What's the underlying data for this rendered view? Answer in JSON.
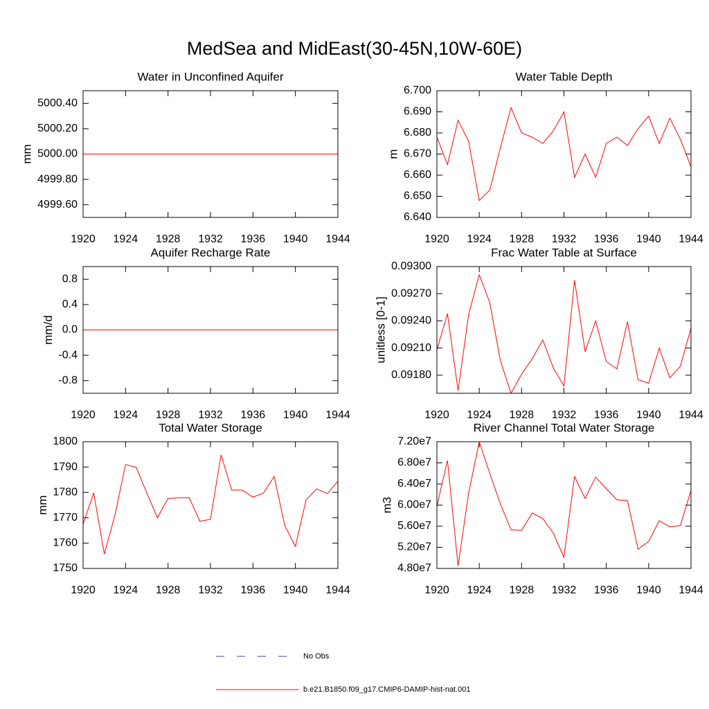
{
  "title": "MedSea and MidEast(30-45N,10W-60E)",
  "legend": [
    {
      "label": "No Obs",
      "color": "#4040a0",
      "dash": "12 18"
    },
    {
      "label": "b.e21.B1850.f09_g17.CMIP6-DAMIP-hist-nat.001",
      "color": "#ff0000"
    }
  ],
  "chart_data": [
    {
      "type": "line",
      "title": "Water in Unconfined Aquifer",
      "y_label": "mm",
      "color": "#ff0000",
      "x": [
        1920,
        1921,
        1922,
        1923,
        1924,
        1925,
        1926,
        1927,
        1928,
        1929,
        1930,
        1931,
        1932,
        1933,
        1934,
        1935,
        1936,
        1937,
        1938,
        1939,
        1940,
        1941,
        1942,
        1943,
        1944
      ],
      "values": [
        5000,
        5000,
        5000,
        5000,
        5000,
        5000,
        5000,
        5000,
        5000,
        5000,
        5000,
        5000,
        5000,
        5000,
        5000,
        5000,
        5000,
        5000,
        5000,
        5000,
        5000,
        5000,
        5000,
        5000,
        5000
      ],
      "xlim": [
        1920,
        1944
      ],
      "xticks": [
        1920,
        1924,
        1928,
        1932,
        1936,
        1940,
        1944
      ],
      "ylim": [
        4999.5,
        5000.5
      ],
      "yticks": [
        {
          "value": 4999.6,
          "label": "4999.60"
        },
        {
          "value": 4999.8,
          "label": "4999.80"
        },
        {
          "value": 5000,
          "label": "5000.00"
        },
        {
          "value": 5000.2,
          "label": "5000.20"
        },
        {
          "value": 5000.4,
          "label": "5000.40"
        }
      ]
    },
    {
      "type": "line",
      "title": "Water Table Depth",
      "y_label": "m",
      "color": "#ff0000",
      "x": [
        1920,
        1921,
        1922,
        1923,
        1924,
        1925,
        1926,
        1927,
        1928,
        1929,
        1930,
        1931,
        1932,
        1933,
        1934,
        1935,
        1936,
        1937,
        1938,
        1939,
        1940,
        1941,
        1942,
        1943,
        1944
      ],
      "values": [
        6.678,
        6.665,
        6.686,
        6.676,
        6.648,
        6.653,
        6.673,
        6.692,
        6.68,
        6.678,
        6.675,
        6.681,
        6.69,
        6.659,
        6.67,
        6.659,
        6.675,
        6.678,
        6.674,
        6.682,
        6.688,
        6.675,
        6.687,
        6.677,
        6.664
      ],
      "xlim": [
        1920,
        1944
      ],
      "xticks": [
        1920,
        1924,
        1928,
        1932,
        1936,
        1940,
        1944
      ],
      "ylim": [
        6.64,
        6.7
      ],
      "yticks": [
        {
          "value": 6.64,
          "label": "6.640"
        },
        {
          "value": 6.65,
          "label": "6.650"
        },
        {
          "value": 6.66,
          "label": "6.660"
        },
        {
          "value": 6.67,
          "label": "6.670"
        },
        {
          "value": 6.68,
          "label": "6.680"
        },
        {
          "value": 6.69,
          "label": "6.690"
        },
        {
          "value": 6.7,
          "label": "6.700"
        }
      ]
    },
    {
      "type": "line",
      "title": "Aquifer Recharge Rate",
      "y_label": "mm/d",
      "color": "#ff0000",
      "x": [
        1920,
        1921,
        1922,
        1923,
        1924,
        1925,
        1926,
        1927,
        1928,
        1929,
        1930,
        1931,
        1932,
        1933,
        1934,
        1935,
        1936,
        1937,
        1938,
        1939,
        1940,
        1941,
        1942,
        1943,
        1944
      ],
      "values": [
        0,
        0,
        0,
        0,
        0,
        0,
        0,
        0,
        0,
        0,
        0,
        0,
        0,
        0,
        0,
        0,
        0,
        0,
        0,
        0,
        0,
        0,
        0,
        0,
        0
      ],
      "xlim": [
        1920,
        1944
      ],
      "xticks": [
        1920,
        1924,
        1928,
        1932,
        1936,
        1940,
        1944
      ],
      "ylim": [
        -1,
        1
      ],
      "yticks": [
        -0.8,
        -0.4,
        {
          "value": 0,
          "label": "0.0"
        },
        0.4,
        0.8
      ]
    },
    {
      "type": "line",
      "title": "Frac Water Table at Surface",
      "y_label": "unitless [0-1]",
      "color": "#ff0000",
      "x": [
        1920,
        1921,
        1922,
        1923,
        1924,
        1925,
        1926,
        1927,
        1928,
        1929,
        1930,
        1931,
        1932,
        1933,
        1934,
        1935,
        1936,
        1937,
        1938,
        1939,
        1940,
        1941,
        1942,
        1943,
        1944
      ],
      "values": [
        0.09208,
        0.09248,
        0.09163,
        0.09247,
        0.09291,
        0.0926,
        0.09196,
        0.0916,
        0.09181,
        0.09198,
        0.09219,
        0.09188,
        0.09168,
        0.09285,
        0.09206,
        0.0924,
        0.09195,
        0.09187,
        0.09239,
        0.09175,
        0.09171,
        0.0921,
        0.09177,
        0.0919,
        0.09232
      ],
      "xlim": [
        1920,
        1944
      ],
      "xticks": [
        1920,
        1924,
        1928,
        1932,
        1936,
        1940,
        1944
      ],
      "ylim": [
        0.0916,
        0.093
      ],
      "yticks": [
        {
          "value": 0.0918,
          "label": "0.09180"
        },
        {
          "value": 0.0921,
          "label": "0.09210"
        },
        {
          "value": 0.0924,
          "label": "0.09240"
        },
        {
          "value": 0.0927,
          "label": "0.09270"
        },
        {
          "value": 0.093,
          "label": "0.09300"
        }
      ]
    },
    {
      "type": "line",
      "title": "Total Water Storage",
      "y_label": "mm",
      "color": "#ff0000",
      "x": [
        1920,
        1921,
        1922,
        1923,
        1924,
        1925,
        1926,
        1927,
        1928,
        1929,
        1930,
        1931,
        1932,
        1933,
        1934,
        1935,
        1936,
        1937,
        1938,
        1939,
        1940,
        1941,
        1942,
        1943,
        1944
      ],
      "values": [
        1767.5,
        1779.8,
        1755.7,
        1771,
        1791,
        1789.9,
        1779.8,
        1770,
        1777.6,
        1777.9,
        1777.9,
        1768.6,
        1769.4,
        1794.8,
        1780.9,
        1780.9,
        1778.1,
        1779.8,
        1786.3,
        1766.9,
        1758.7,
        1777,
        1781.4,
        1779.5,
        1784.4
      ],
      "xlim": [
        1920,
        1944
      ],
      "xticks": [
        1920,
        1924,
        1928,
        1932,
        1936,
        1940,
        1944
      ],
      "ylim": [
        1750,
        1800
      ],
      "yticks": [
        1750,
        1760,
        1770,
        1780,
        1790,
        1800
      ]
    },
    {
      "type": "line",
      "title": "River Channel Total Water Storage",
      "y_label": "m3",
      "color": "#ff0000",
      "x": [
        1920,
        1921,
        1922,
        1923,
        1924,
        1925,
        1926,
        1927,
        1928,
        1929,
        1930,
        1931,
        1932,
        1933,
        1934,
        1935,
        1936,
        1937,
        1938,
        1939,
        1940,
        1941,
        1942,
        1943,
        1944
      ],
      "values": [
        59800000,
        68460000,
        48500000,
        62300000,
        72000000,
        65970000,
        60200000,
        55340000,
        55200000,
        58500000,
        57450000,
        54690000,
        50100000,
        65440000,
        61250000,
        65300000,
        63100000,
        61000000,
        60850000,
        51670000,
        53100000,
        57050000,
        55870000,
        56130000,
        62820000
      ],
      "xlim": [
        1920,
        1944
      ],
      "xticks": [
        1920,
        1924,
        1928,
        1932,
        1936,
        1940,
        1944
      ],
      "ylim": [
        48000000,
        72000000
      ],
      "yticks": [
        {
          "value": 48000000,
          "label": "4.80e7"
        },
        {
          "value": 52000000,
          "label": "5.20e7"
        },
        {
          "value": 56000000,
          "label": "5.60e7"
        },
        {
          "value": 60000000,
          "label": "6.00e7"
        },
        {
          "value": 64000000,
          "label": "6.40e7"
        },
        {
          "value": 68000000,
          "label": "6.80e7"
        },
        {
          "value": 72000000,
          "label": "7.20e7"
        }
      ]
    }
  ]
}
